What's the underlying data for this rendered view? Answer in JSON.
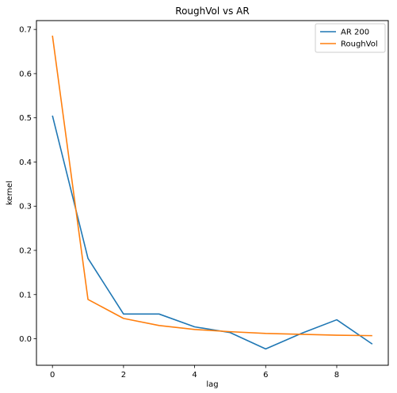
{
  "chart_data": {
    "type": "line",
    "title": "RoughVol vs AR",
    "xlabel": "lag",
    "ylabel": "kernel",
    "xlim": [
      -0.45,
      9.45
    ],
    "ylim": [
      -0.06,
      0.72
    ],
    "xticks": [
      0,
      2,
      4,
      6,
      8
    ],
    "yticks": [
      0.0,
      0.1,
      0.2,
      0.3,
      0.4,
      0.5,
      0.6,
      0.7
    ],
    "xtick_labels": [
      "0",
      "2",
      "4",
      "6",
      "8"
    ],
    "ytick_labels": [
      "0.0",
      "0.1",
      "0.2",
      "0.3",
      "0.4",
      "0.5",
      "0.6",
      "0.7"
    ],
    "grid": false,
    "legend_position": "top-right",
    "x": [
      0,
      1,
      2,
      3,
      4,
      5,
      6,
      7,
      8,
      9
    ],
    "series": [
      {
        "name": "AR 200",
        "color": "#1f77b4",
        "values": [
          0.505,
          0.182,
          0.056,
          0.056,
          0.027,
          0.014,
          -0.023,
          0.012,
          0.043,
          -0.012
        ]
      },
      {
        "name": "RoughVol",
        "color": "#ff7f0e",
        "values": [
          0.686,
          0.089,
          0.046,
          0.03,
          0.021,
          0.016,
          0.012,
          0.01,
          0.008,
          0.007
        ]
      }
    ]
  }
}
